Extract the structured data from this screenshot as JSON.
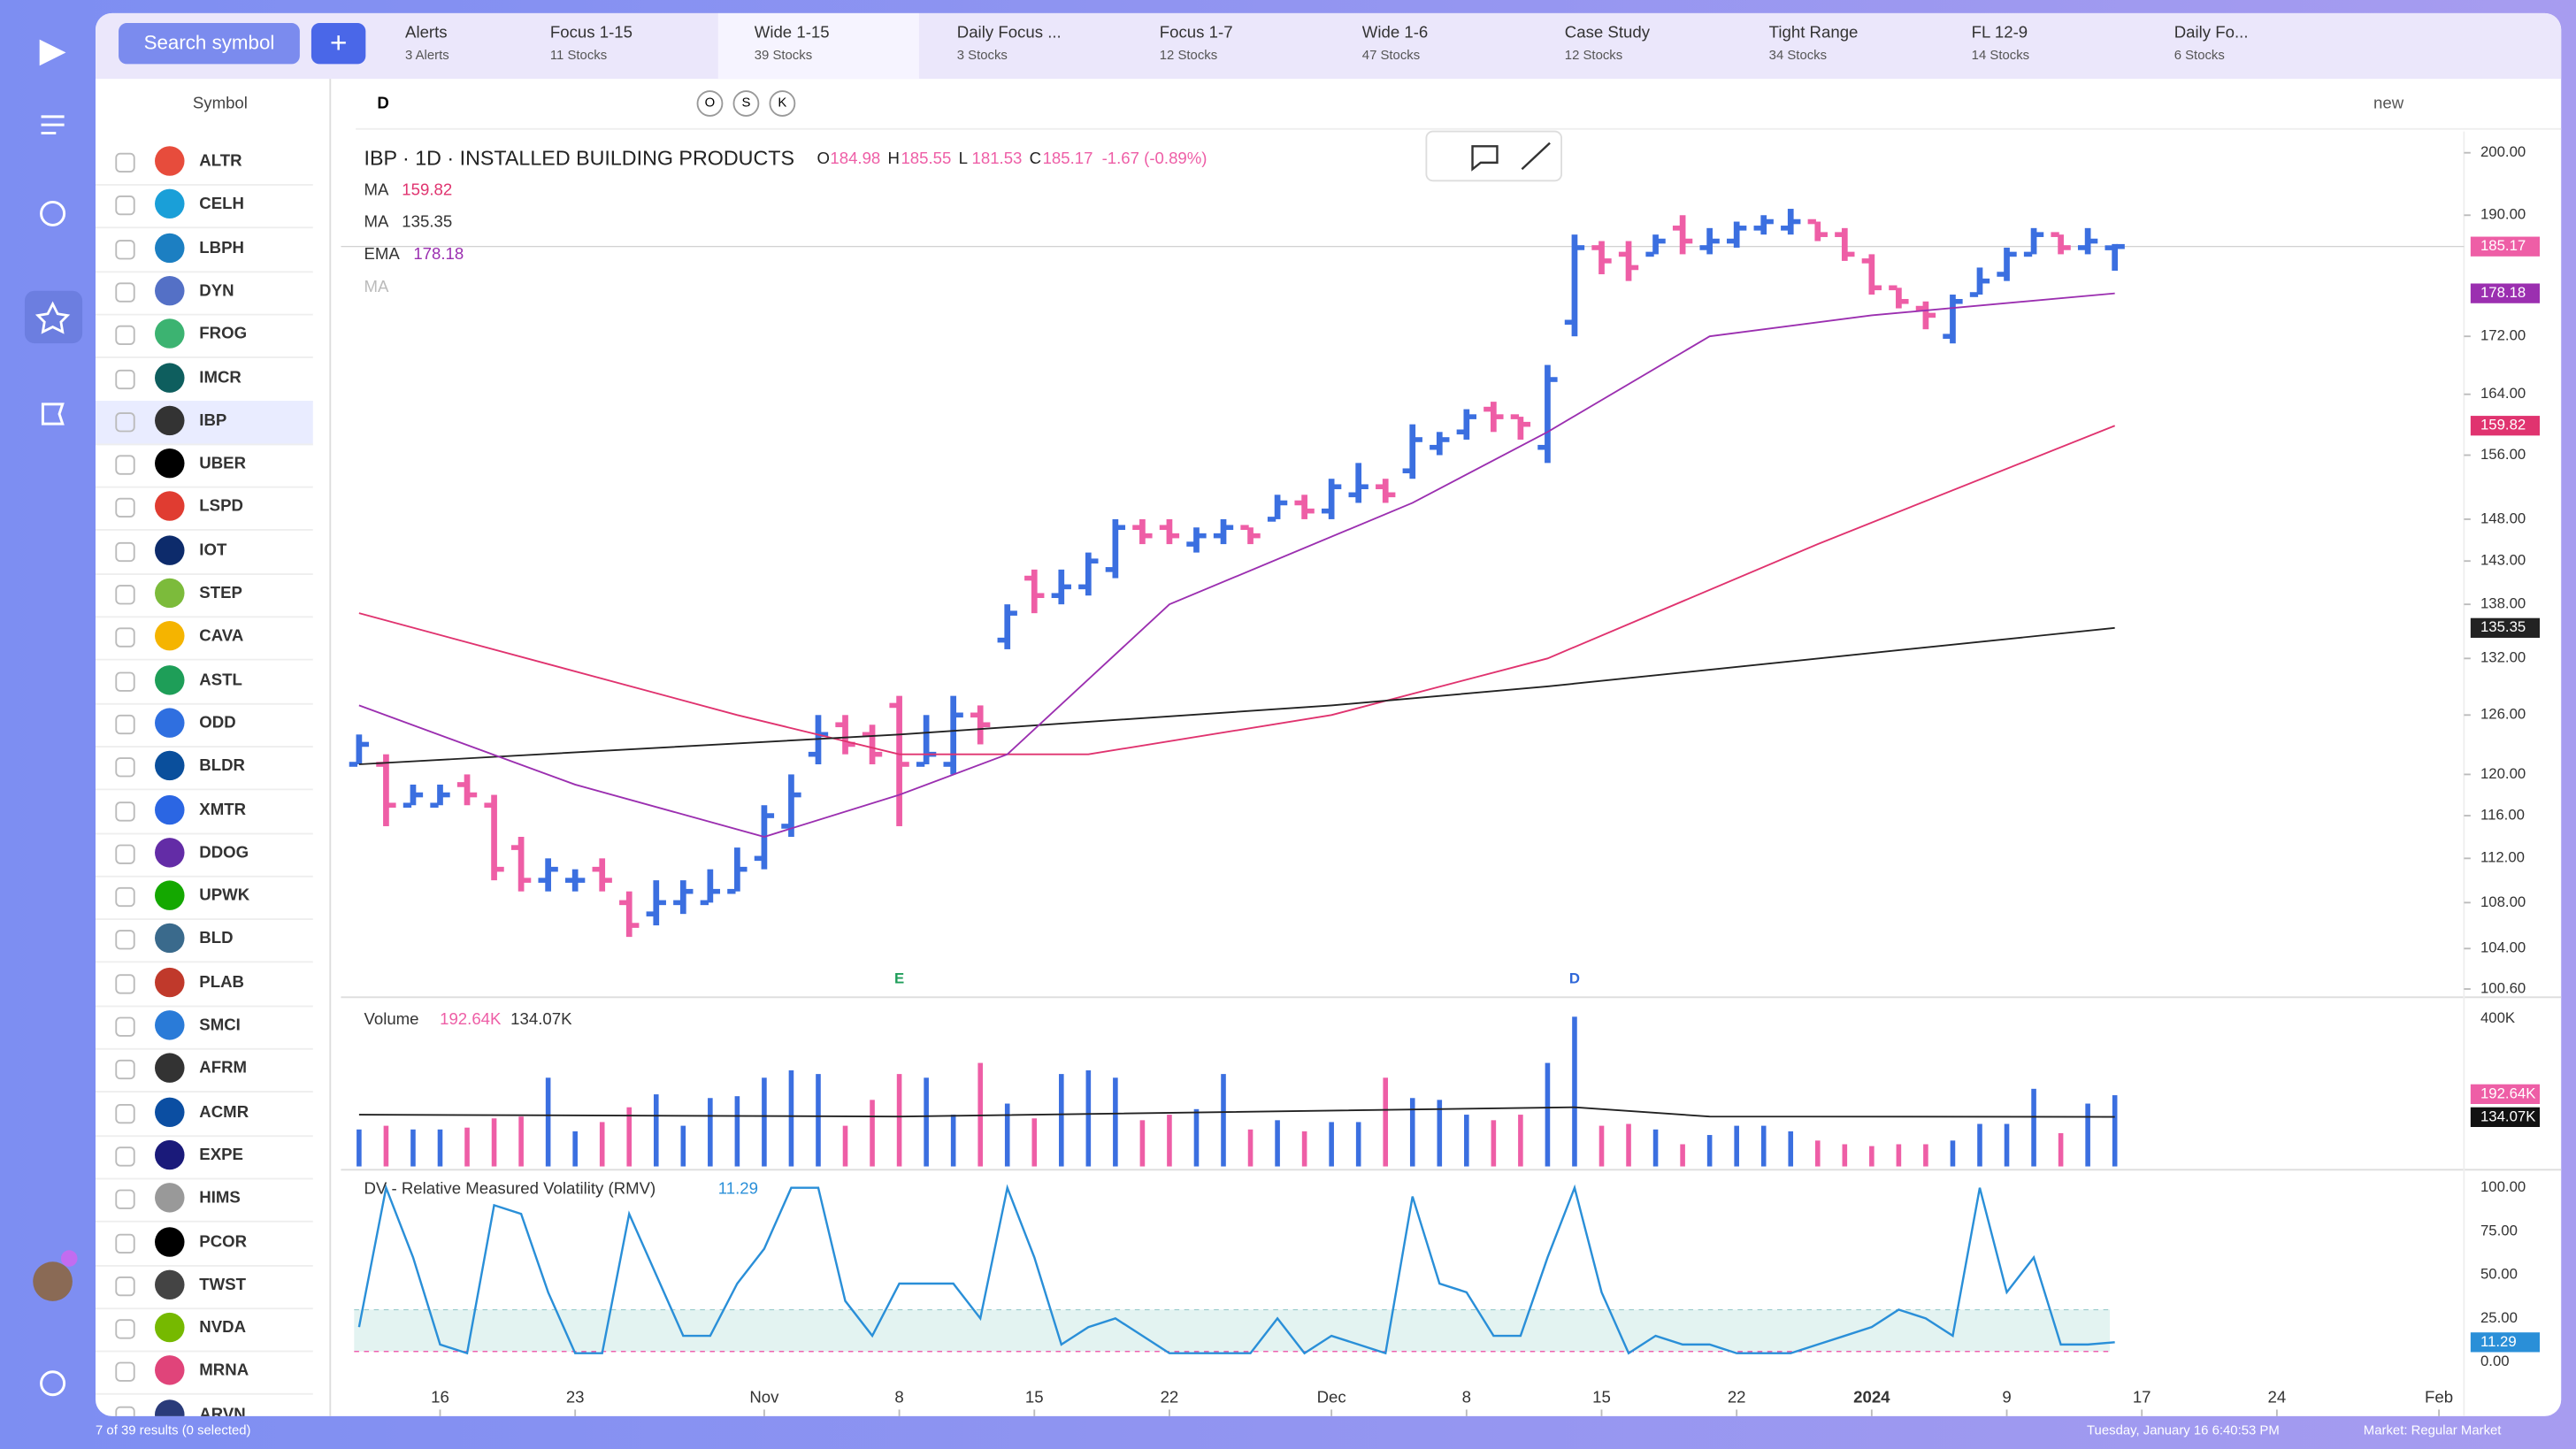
{
  "sidebar": {
    "search": "Search symbol",
    "column": "Symbol",
    "symbols": [
      "ALTR",
      "CELH",
      "LBPH",
      "DYN",
      "FROG",
      "IMCR",
      "IBP",
      "UBER",
      "LSPD",
      "IOT",
      "STEP",
      "CAVA",
      "ASTL",
      "ODD",
      "BLDR",
      "XMTR",
      "DDOG",
      "UPWK",
      "BLD",
      "PLAB",
      "SMCI",
      "AFRM",
      "ACMR",
      "EXPE",
      "HIMS",
      "PCOR",
      "TWST",
      "NVDA",
      "MRNA",
      "ARVN"
    ],
    "selected": "IBP"
  },
  "tabs": [
    {
      "name": "Alerts",
      "sub": "3 Alerts"
    },
    {
      "name": "Focus 1-15",
      "sub": "11 Stocks"
    },
    {
      "name": "Wide 1-15",
      "sub": "39 Stocks"
    },
    {
      "name": "Daily Focus ...",
      "sub": "3 Stocks"
    },
    {
      "name": "Focus 1-7",
      "sub": "12 Stocks"
    },
    {
      "name": "Wide 1-6",
      "sub": "47 Stocks"
    },
    {
      "name": "Case Study",
      "sub": "12 Stocks"
    },
    {
      "name": "Tight Range",
      "sub": "34 Stocks"
    },
    {
      "name": "FL 12-9",
      "sub": "14 Stocks"
    },
    {
      "name": "Daily Fo...",
      "sub": "6 Stocks"
    }
  ],
  "active_tab": "Wide 1-15",
  "toolbar": {
    "interval": "D",
    "buttons": [
      "O",
      "S",
      "K"
    ],
    "layout": "new"
  },
  "footer": {
    "results": "7 of 39 results (0 selected)",
    "time": "Tuesday, January 16 6:40:53 PM",
    "market": "Market: Regular Market"
  },
  "chart_data": [
    {
      "type": "ohlc",
      "title": "IBP · 1D · INSTALLED BUILDING PRODUCTS",
      "ohlc_labels": [
        "O",
        "H",
        "L",
        "C"
      ],
      "ohlc": [
        184.98,
        185.55,
        181.53,
        185.17
      ],
      "change": "-1.67 (-0.89%)",
      "log_scale": true,
      "up_color": "#3b6fe0",
      "down_color": "#ee5ea6",
      "bars": [
        [
          121,
          124,
          121,
          123
        ],
        [
          121,
          122,
          115,
          117
        ],
        [
          117,
          119,
          117,
          118
        ],
        [
          117,
          119,
          117,
          118
        ],
        [
          119,
          120,
          117,
          118
        ],
        [
          117,
          118,
          110,
          111
        ],
        [
          113,
          114,
          109,
          110
        ],
        [
          110,
          112,
          109,
          111
        ],
        [
          110,
          111,
          109,
          110
        ],
        [
          111,
          112,
          109,
          110
        ],
        [
          108,
          109,
          105,
          106
        ],
        [
          107,
          110,
          106,
          108
        ],
        [
          108,
          110,
          107,
          109
        ],
        [
          108,
          111,
          108,
          109
        ],
        [
          109,
          113,
          109,
          111
        ],
        [
          112,
          117,
          111,
          116
        ],
        [
          115,
          120,
          114,
          118
        ],
        [
          122,
          126,
          121,
          124
        ],
        [
          125,
          126,
          122,
          123
        ],
        [
          124,
          125,
          121,
          122
        ],
        [
          127,
          128,
          115,
          121
        ],
        [
          121,
          126,
          121,
          122
        ],
        [
          121,
          128,
          120,
          126
        ],
        [
          126,
          127,
          123,
          125
        ],
        [
          134,
          138,
          133,
          137
        ],
        [
          141,
          142,
          137,
          139
        ],
        [
          139,
          142,
          138,
          140
        ],
        [
          140,
          144,
          139,
          143
        ],
        [
          142,
          148,
          141,
          147
        ],
        [
          147,
          148,
          145,
          146
        ],
        [
          147,
          148,
          145,
          146
        ],
        [
          145,
          147,
          144,
          146
        ],
        [
          146,
          148,
          145,
          147
        ],
        [
          147,
          147,
          145,
          146
        ],
        [
          148,
          151,
          148,
          150
        ],
        [
          150,
          151,
          148,
          149
        ],
        [
          149,
          153,
          148,
          152
        ],
        [
          151,
          155,
          150,
          152
        ],
        [
          152,
          153,
          150,
          151
        ],
        [
          154,
          160,
          153,
          158
        ],
        [
          157,
          159,
          156,
          158
        ],
        [
          159,
          162,
          158,
          161
        ],
        [
          162,
          163,
          159,
          161
        ],
        [
          161,
          161,
          158,
          160
        ],
        [
          157,
          168,
          155,
          166
        ],
        [
          174,
          187,
          172,
          185
        ],
        [
          185,
          186,
          181,
          183
        ],
        [
          184,
          186,
          180,
          182
        ],
        [
          184,
          187,
          184,
          186
        ],
        [
          188,
          190,
          184,
          186
        ],
        [
          185,
          188,
          184,
          186
        ],
        [
          186,
          189,
          185,
          188
        ],
        [
          188,
          190,
          187,
          189
        ],
        [
          188,
          191,
          187,
          189
        ],
        [
          189,
          189,
          186,
          187
        ],
        [
          187,
          188,
          183,
          184
        ],
        [
          183,
          184,
          178,
          179
        ],
        [
          179,
          179,
          176,
          177
        ],
        [
          176,
          177,
          173,
          175
        ],
        [
          172,
          178,
          171,
          177
        ],
        [
          178,
          182,
          178,
          180
        ],
        [
          181,
          185,
          180,
          184
        ],
        [
          184,
          188,
          184,
          187
        ],
        [
          187,
          187,
          184,
          185
        ],
        [
          185,
          188,
          184,
          186
        ],
        [
          184.98,
          185.55,
          181.53,
          185.17
        ]
      ],
      "series": [
        {
          "name": "MA",
          "color": "#e0336f",
          "x": [
            0,
            14,
            20,
            27,
            36,
            44,
            54,
            65
          ],
          "values": [
            137,
            126,
            122,
            122,
            126,
            132,
            145,
            159.82
          ]
        },
        {
          "name": "MA",
          "color": "#222222",
          "x": [
            0,
            20,
            36,
            44,
            65
          ],
          "values": [
            121,
            124,
            127,
            129,
            135.35
          ]
        },
        {
          "name": "EMA",
          "color": "#9b2fb0",
          "x": [
            0,
            8,
            15,
            20,
            24,
            30,
            39,
            44,
            50,
            56,
            65
          ],
          "values": [
            127,
            119,
            114,
            118,
            122,
            138,
            150,
            159,
            172,
            175,
            178.18
          ]
        }
      ],
      "hidden_series": "MA",
      "events": [
        {
          "label": "E",
          "x": 20,
          "color": "#1f9e5a"
        },
        {
          "label": "D",
          "x": 45,
          "color": "#2f67d8"
        }
      ],
      "ylim": [
        100.6,
        200
      ],
      "yticks": [
        {
          "value": 200,
          "label": "200.00"
        },
        {
          "value": 190,
          "label": "190.00"
        },
        {
          "value": 172,
          "label": "172.00"
        },
        {
          "value": 164,
          "label": "164.00"
        },
        {
          "value": 156,
          "label": "156.00"
        },
        {
          "value": 148,
          "label": "148.00"
        },
        {
          "value": 143,
          "label": "143.00"
        },
        {
          "value": 138,
          "label": "138.00"
        },
        {
          "value": 132,
          "label": "132.00"
        },
        {
          "value": 126,
          "label": "126.00"
        },
        {
          "value": 120,
          "label": "120.00"
        },
        {
          "value": 116,
          "label": "116.00"
        },
        {
          "value": 112,
          "label": "112.00"
        },
        {
          "value": 108,
          "label": "108.00"
        },
        {
          "value": 104,
          "label": "104.00"
        },
        {
          "value": 100.6,
          "label": "100.60"
        }
      ],
      "xlim": [
        -0.6,
        81
      ],
      "xticks": [
        {
          "value": 3,
          "label": "16"
        },
        {
          "value": 8,
          "label": "23"
        },
        {
          "value": 15,
          "label": "Nov"
        },
        {
          "value": 20,
          "label": "8"
        },
        {
          "value": 25,
          "label": "15"
        },
        {
          "value": 30,
          "label": "22"
        },
        {
          "value": 36,
          "label": "Dec"
        },
        {
          "value": 41,
          "label": "8"
        },
        {
          "value": 46,
          "label": "15"
        },
        {
          "value": 51,
          "label": "22"
        },
        {
          "value": 56,
          "label": "2024"
        },
        {
          "value": 61,
          "label": "9"
        },
        {
          "value": 66,
          "label": "17"
        },
        {
          "value": 71,
          "label": "24"
        },
        {
          "value": 77,
          "label": "Feb"
        }
      ]
    },
    {
      "type": "volume",
      "title": "Volume",
      "ylim": [
        0,
        400
      ],
      "yticks": [
        {
          "value": 400,
          "label": "400K"
        }
      ],
      "values": [
        100,
        110,
        100,
        100,
        105,
        130,
        135,
        240,
        95,
        120,
        160,
        195,
        110,
        185,
        190,
        240,
        260,
        250,
        110,
        180,
        250,
        240,
        140,
        280,
        170,
        130,
        250,
        260,
        240,
        125,
        140,
        155,
        250,
        100,
        125,
        95,
        120,
        120,
        240,
        185,
        180,
        140,
        125,
        140,
        280,
        405,
        110,
        115,
        100,
        60,
        85,
        110,
        110,
        95,
        70,
        60,
        55,
        60,
        60,
        70,
        115,
        115,
        210,
        90,
        170,
        192.64
      ],
      "value_labels": [
        null,
        null,
        null,
        null,
        null,
        null,
        null,
        null,
        null,
        null,
        null,
        null,
        null,
        null,
        null,
        null,
        null,
        null,
        null,
        null,
        null,
        null,
        null,
        null,
        null,
        null,
        null,
        null,
        null,
        null,
        null,
        null,
        null,
        null,
        null,
        null,
        null,
        null,
        null,
        null,
        null,
        null,
        null,
        null,
        null,
        null,
        null,
        null,
        null,
        null,
        null,
        null,
        null,
        null,
        null,
        null,
        null,
        null,
        null,
        null,
        null,
        null,
        null,
        null,
        null,
        "192.64K"
      ],
      "ma": {
        "color": "#222222",
        "x": [
          0,
          20,
          45,
          50,
          65
        ],
        "values": [
          140,
          135,
          160,
          135,
          134.07
        ],
        "value_labels": [
          null,
          null,
          null,
          null,
          "134.07K"
        ]
      }
    },
    {
      "type": "line",
      "title": "DV - Relative Measured Volatility (RMV)",
      "color": "#2a8fd8",
      "ylim": [
        0,
        100
      ],
      "band": [
        6,
        30
      ],
      "yticks": [
        {
          "value": 100,
          "label": "100.00"
        },
        {
          "value": 75,
          "label": "75.00"
        },
        {
          "value": 50,
          "label": "50.00"
        },
        {
          "value": 25,
          "label": "25.00"
        },
        {
          "value": 0,
          "label": "0.00"
        }
      ],
      "values": [
        20,
        100,
        60,
        10,
        5,
        90,
        85,
        40,
        5,
        5,
        85,
        50,
        15,
        15,
        45,
        65,
        100,
        100,
        35,
        15,
        45,
        45,
        45,
        25,
        100,
        60,
        10,
        20,
        25,
        15,
        5,
        5,
        5,
        5,
        25,
        5,
        15,
        10,
        5,
        95,
        45,
        40,
        15,
        15,
        60,
        100,
        40,
        5,
        15,
        10,
        10,
        5,
        5,
        5,
        10,
        15,
        20,
        30,
        25,
        15,
        100,
        40,
        60,
        10,
        10,
        11.29
      ]
    }
  ]
}
